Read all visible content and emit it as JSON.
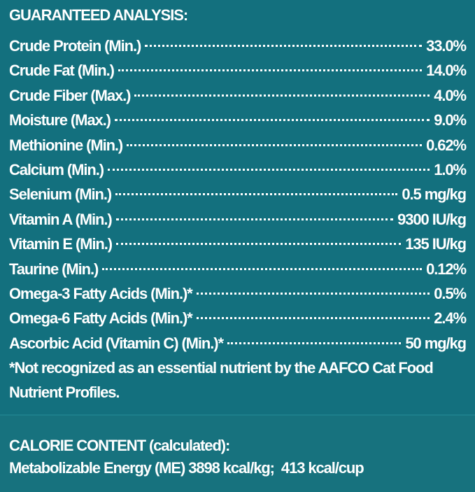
{
  "header": {
    "title": "GUARANTEED ANALYSIS:"
  },
  "table": {
    "rows": [
      [
        "Crude Protein (Min.)",
        "33.0%"
      ],
      [
        "Crude Fat (Min.)",
        "14.0%"
      ],
      [
        "Crude Fiber (Max.)",
        "4.0%"
      ],
      [
        "Moisture (Max.)",
        "9.0%"
      ],
      [
        "Methionine (Min.)",
        "0.62%"
      ],
      [
        "Calcium (Min.)",
        "1.0%"
      ],
      [
        "Selenium (Min.)",
        "0.5 mg/kg"
      ],
      [
        "Vitamin A (Min.)",
        "9300 IU/kg"
      ],
      [
        "Vitamin E (Min.)",
        "135 IU/kg"
      ],
      [
        "Taurine (Min.)",
        "0.12%"
      ],
      [
        "Omega-3 Fatty Acids (Min.)*",
        "0.5%"
      ],
      [
        "Omega-6 Fatty Acids (Min.)*",
        "2.4%"
      ],
      [
        "Ascorbic Acid (Vitamin C) (Min.)*",
        "50 mg/kg"
      ]
    ]
  },
  "footnote": "*Not recognized as an essential nutrient by the AAFCO Cat Food Nutrient Profiles.",
  "calorie": {
    "title": "CALORIE CONTENT (calculated):",
    "text": "Metabolizable Energy (ME) 3898 kcal/kg;  413 kcal/cup"
  }
}
